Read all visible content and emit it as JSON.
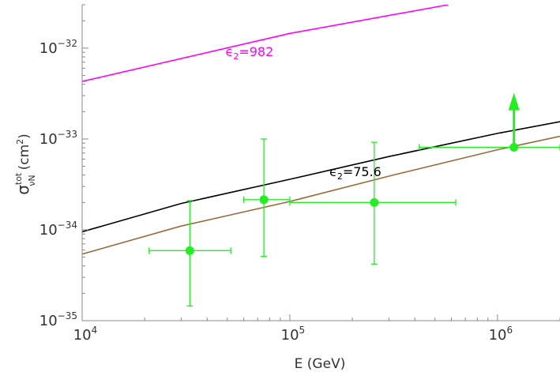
{
  "chart_data": {
    "type": "line",
    "xlabel": "E (GeV)",
    "ylabel": {
      "base": "σ",
      "sup": "tot",
      "sub": "νN",
      "units": "(cm",
      "units_sup": "2",
      "units_close": ")"
    },
    "xscale": "log",
    "yscale": "log",
    "xlim": [
      10000,
      2000000
    ],
    "ylim": [
      1e-35,
      3e-32
    ],
    "x_ticks": [
      {
        "value": 10000,
        "base": "10",
        "exp": "4"
      },
      {
        "value": 100000,
        "base": "10",
        "exp": "5"
      },
      {
        "value": 1000000,
        "base": "10",
        "exp": "6"
      }
    ],
    "y_ticks": [
      {
        "value": 1e-35,
        "base": "10",
        "exp": "−35"
      },
      {
        "value": 1e-34,
        "base": "10",
        "exp": "−34"
      },
      {
        "value": 1e-33,
        "base": "10",
        "exp": "−33"
      },
      {
        "value": 1e-32,
        "base": "10",
        "exp": "−32"
      }
    ],
    "series": [
      {
        "label": "ϵ₂=982",
        "label_base": "ϵ",
        "label_sub": "2",
        "label_value": "=982",
        "color": "#ff00ff",
        "x": [
          10000,
          100000,
          580000
        ],
        "y": [
          4.3e-33,
          1.45e-32,
          3e-32
        ],
        "label_at": [
          49000,
          9.2e-33
        ]
      },
      {
        "label": "ϵ₂=75.6",
        "label_base": "ϵ",
        "label_sub": "2",
        "label_value": "=75.6",
        "color": "#000000",
        "x": [
          10000,
          30000,
          100000,
          300000,
          1000000,
          2000000
        ],
        "y": [
          9.5e-35,
          1.95e-34,
          3.6e-34,
          6.4e-34,
          1.15e-33,
          1.55e-33
        ],
        "label_at": [
          155000,
          4.4e-34
        ]
      },
      {
        "label": "",
        "color": "#9a6b3a",
        "x": [
          10000,
          30000,
          100000,
          300000,
          1000000,
          2000000
        ],
        "y": [
          5.4e-35,
          1.1e-34,
          2.05e-34,
          3.9e-34,
          7.6e-34,
          1.07e-33
        ]
      }
    ],
    "points": {
      "color": "#22ee22",
      "data": [
        {
          "x": 33000,
          "y": 5.9e-35,
          "xerr": [
            21000,
            52000
          ],
          "yerr": [
            1.45e-35,
            2.1e-34
          ]
        },
        {
          "x": 75000,
          "y": 2.15e-34,
          "xerr": [
            60000,
            100000
          ],
          "yerr": [
            5.1e-35,
            1e-33
          ]
        },
        {
          "x": 255000,
          "y": 2e-34,
          "xerr": [
            100000,
            630000
          ],
          "yerr": [
            4.2e-35,
            9.2e-34
          ]
        },
        {
          "x": 1200000,
          "y": 8.1e-34,
          "xerr": [
            420000,
            2000000
          ],
          "yerr": [
            8.1e-34,
            2.85e-33
          ],
          "lower_limit": true
        }
      ]
    },
    "grid": false,
    "legend": "none"
  }
}
